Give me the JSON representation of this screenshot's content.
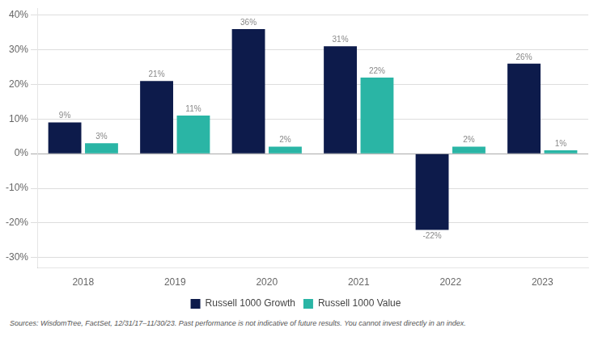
{
  "chart_data": {
    "type": "bar",
    "categories": [
      "2018",
      "2019",
      "2020",
      "2021",
      "2022",
      "2023"
    ],
    "series": [
      {
        "name": "Russell 1000 Growth",
        "color": "#0d1b4b",
        "values": [
          9,
          21,
          36,
          31,
          -22,
          26
        ],
        "value_labels": [
          "9%",
          "21%",
          "36%",
          "31%",
          "-22%",
          "26%"
        ]
      },
      {
        "name": "Russell 1000 Value",
        "color": "#2ab5a5",
        "values": [
          3,
          11,
          2,
          22,
          2,
          1
        ],
        "value_labels": [
          "3%",
          "11%",
          "2%",
          "22%",
          "2%",
          "1%"
        ]
      }
    ],
    "ylim": [
      -33,
      42
    ],
    "yticks": [
      {
        "value": -30,
        "label": "-30%"
      },
      {
        "value": -20,
        "label": "-20%"
      },
      {
        "value": -10,
        "label": "-10%"
      },
      {
        "value": 0,
        "label": "0%"
      },
      {
        "value": 10,
        "label": "10%"
      },
      {
        "value": 20,
        "label": "20%"
      },
      {
        "value": 30,
        "label": "30%"
      },
      {
        "value": 40,
        "label": "40%"
      }
    ],
    "grid": true,
    "legend": "bottom",
    "data_labels": true,
    "annotations": [
      "Sources: WisdomTree, FactSet, 12/31/17–11/30/23. Past performance is not indicative of future results. You cannot invest directly in an index."
    ]
  }
}
